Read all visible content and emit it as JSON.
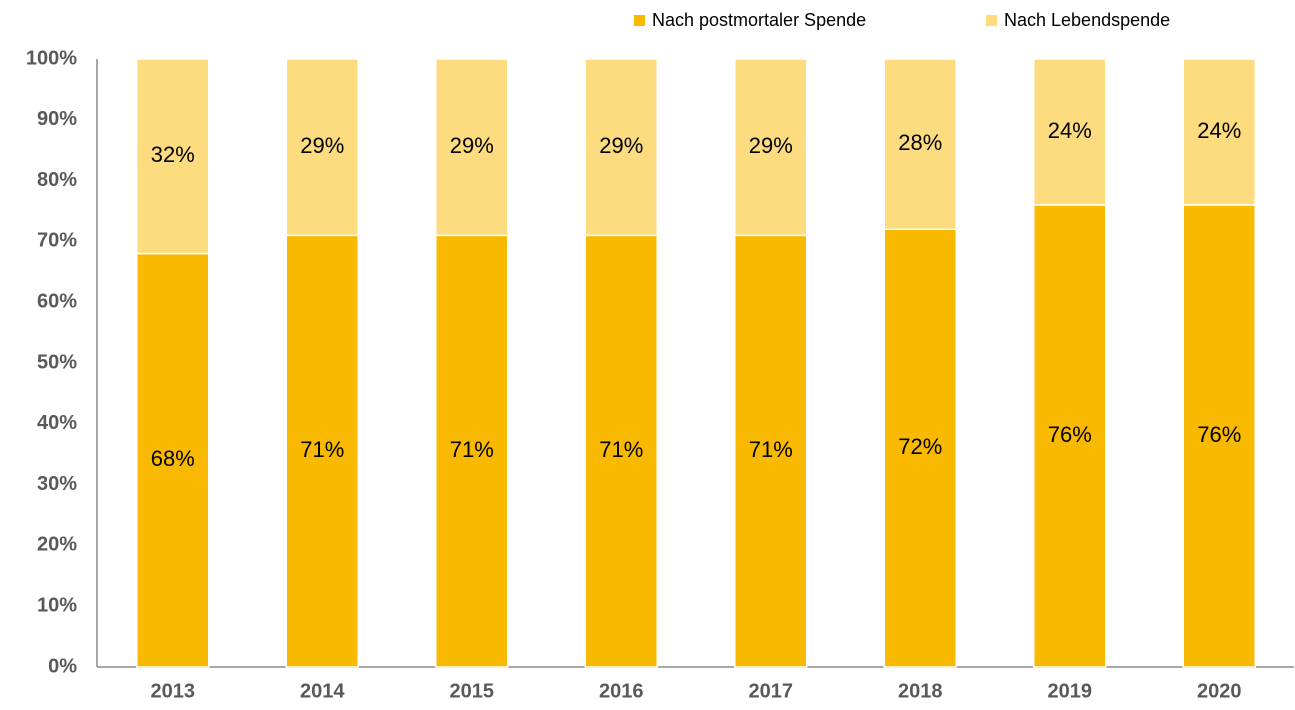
{
  "chart_data": {
    "type": "stacked_bar",
    "categories": [
      "2013",
      "2014",
      "2015",
      "2016",
      "2017",
      "2018",
      "2019",
      "2020"
    ],
    "series": [
      {
        "name": "Nach postmortaler Spende",
        "color": "#f9b900",
        "values": [
          68,
          71,
          71,
          71,
          71,
          72,
          76,
          76
        ],
        "value_labels": [
          "68%",
          "71%",
          "71%",
          "71%",
          "71%",
          "72%",
          "76%",
          "76%"
        ]
      },
      {
        "name": "Nach Lebendspende",
        "color": "#fddc7f",
        "values": [
          32,
          29,
          29,
          29,
          29,
          28,
          24,
          24
        ],
        "value_labels": [
          "32%",
          "29%",
          "29%",
          "29%",
          "29%",
          "28%",
          "24%",
          "24%"
        ]
      }
    ],
    "ylim": [
      0,
      100
    ],
    "yticks": [
      {
        "value": 0,
        "label": "0%"
      },
      {
        "value": 10,
        "label": "10%"
      },
      {
        "value": 20,
        "label": "20%"
      },
      {
        "value": 30,
        "label": "30%"
      },
      {
        "value": 40,
        "label": "40%"
      },
      {
        "value": 50,
        "label": "50%"
      },
      {
        "value": 60,
        "label": "60%"
      },
      {
        "value": 70,
        "label": "70%"
      },
      {
        "value": 80,
        "label": "80%"
      },
      {
        "value": 90,
        "label": "90%"
      },
      {
        "value": 100,
        "label": "100%"
      }
    ],
    "grid": false,
    "legend": "top"
  }
}
